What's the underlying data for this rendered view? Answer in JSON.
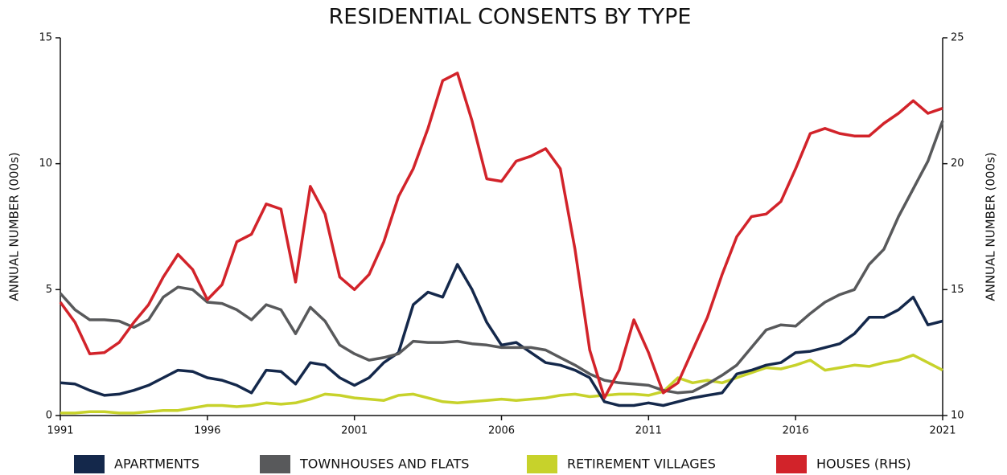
{
  "chart_data": {
    "type": "line",
    "title": "RESIDENTIAL CONSENTS BY TYPE",
    "ylabel": "ANNUAL NUMBER (000s)",
    "y2label": "ANNUAL NUMBER (000s)",
    "x": [
      1991,
      1991.5,
      1992,
      1992.5,
      1993,
      1993.5,
      1994,
      1994.5,
      1995,
      1995.5,
      1996,
      1996.5,
      1997,
      1997.5,
      1998,
      1998.5,
      1999,
      1999.5,
      2000,
      2000.5,
      2001,
      2001.5,
      2002,
      2002.5,
      2003,
      2003.5,
      2004,
      2004.5,
      2005,
      2005.5,
      2006,
      2006.5,
      2007,
      2007.5,
      2008,
      2008.5,
      2009,
      2009.5,
      2010,
      2010.5,
      2011,
      2011.5,
      2012,
      2012.5,
      2013,
      2013.5,
      2014,
      2014.5,
      2015,
      2015.5,
      2016,
      2016.5,
      2017,
      2017.5,
      2018,
      2018.5,
      2019,
      2019.5,
      2020,
      2020.5,
      2021
    ],
    "xlim": [
      1991,
      2021
    ],
    "xticks": [
      1991,
      1996,
      2001,
      2006,
      2011,
      2016,
      2021
    ],
    "ylim": [
      0,
      15
    ],
    "yticks": [
      0,
      5,
      10,
      15
    ],
    "y2lim": [
      10,
      25
    ],
    "y2ticks": [
      10,
      15,
      20,
      25
    ],
    "series": [
      {
        "name": "APARTMENTS",
        "color": "#14284b",
        "values": [
          1.3,
          1.25,
          1.0,
          0.8,
          0.85,
          1.0,
          1.2,
          1.5,
          1.8,
          1.75,
          1.5,
          1.4,
          1.2,
          0.9,
          1.8,
          1.75,
          1.25,
          2.1,
          2.0,
          1.5,
          1.2,
          1.5,
          2.1,
          2.5,
          4.4,
          4.9,
          4.7,
          6.0,
          5.0,
          3.7,
          2.8,
          2.9,
          2.5,
          2.1,
          2.0,
          1.8,
          1.5,
          0.55,
          0.4,
          0.4,
          0.5,
          0.4,
          0.55,
          0.7,
          0.8,
          0.9,
          1.65,
          1.8,
          2.0,
          2.1,
          2.5,
          2.55,
          2.7,
          2.85,
          3.25,
          3.9,
          3.9,
          4.2,
          4.7,
          3.6,
          3.75
        ]
      },
      {
        "name": "TOWNHOUSES AND FLATS",
        "color": "#58595b",
        "values": [
          4.85,
          4.2,
          3.8,
          3.8,
          3.75,
          3.5,
          3.8,
          4.7,
          5.1,
          5.0,
          4.5,
          4.45,
          4.2,
          3.8,
          4.4,
          4.2,
          3.25,
          4.3,
          3.75,
          2.8,
          2.45,
          2.2,
          2.3,
          2.45,
          2.95,
          2.9,
          2.9,
          2.95,
          2.85,
          2.8,
          2.7,
          2.7,
          2.7,
          2.6,
          2.3,
          2.0,
          1.65,
          1.4,
          1.3,
          1.25,
          1.2,
          1.0,
          0.9,
          0.95,
          1.25,
          1.6,
          2.0,
          2.7,
          3.4,
          3.6,
          3.55,
          4.05,
          4.5,
          4.8,
          5.0,
          6.0,
          6.6,
          7.9,
          9.0,
          10.1,
          11.7
        ]
      },
      {
        "name": "RETIREMENT VILLAGES",
        "color": "#c7d22b",
        "values": [
          0.1,
          0.1,
          0.15,
          0.15,
          0.1,
          0.1,
          0.15,
          0.2,
          0.2,
          0.3,
          0.4,
          0.4,
          0.35,
          0.4,
          0.5,
          0.45,
          0.5,
          0.65,
          0.85,
          0.8,
          0.7,
          0.65,
          0.6,
          0.8,
          0.85,
          0.7,
          0.55,
          0.5,
          0.55,
          0.6,
          0.65,
          0.6,
          0.65,
          0.7,
          0.8,
          0.85,
          0.75,
          0.8,
          0.85,
          0.85,
          0.8,
          0.95,
          1.5,
          1.3,
          1.4,
          1.3,
          1.5,
          1.7,
          1.9,
          1.85,
          2.0,
          2.2,
          1.8,
          1.9,
          2.0,
          1.95,
          2.1,
          2.2,
          2.4,
          2.1,
          1.8
        ]
      },
      {
        "name": "HOUSES (RHS)",
        "color": "#d2232a",
        "axis": "y2",
        "values": [
          14.5,
          13.7,
          12.45,
          12.5,
          12.9,
          13.7,
          14.4,
          15.5,
          16.4,
          15.8,
          14.6,
          15.2,
          16.9,
          17.2,
          18.4,
          18.2,
          15.3,
          19.1,
          18.0,
          15.5,
          15.0,
          15.6,
          16.9,
          18.7,
          19.8,
          21.4,
          23.3,
          23.6,
          21.7,
          19.4,
          19.3,
          20.1,
          20.3,
          20.6,
          19.8,
          16.6,
          12.6,
          10.7,
          11.8,
          13.8,
          12.5,
          10.9,
          11.3,
          12.6,
          13.9,
          15.6,
          17.1,
          17.9,
          18.0,
          18.5,
          19.8,
          21.2,
          21.4,
          21.2,
          21.1,
          21.1,
          21.6,
          22.0,
          22.5,
          22.0,
          22.2
        ]
      }
    ]
  }
}
